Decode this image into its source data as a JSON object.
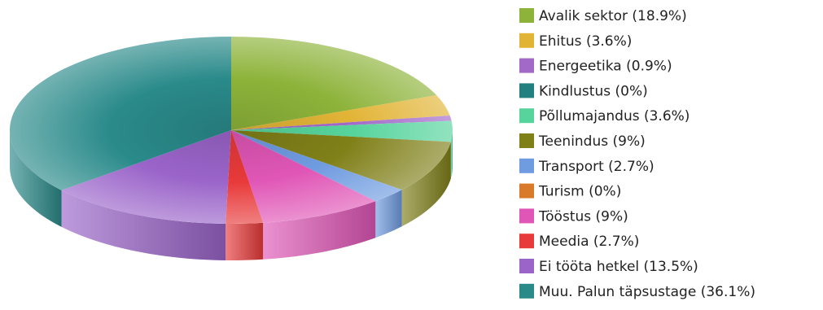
{
  "chart_data": {
    "type": "pie",
    "style": "3d",
    "legend_position": "right",
    "slices": [
      {
        "label": "Avalik sektor (18.9%)",
        "value": 18.9,
        "color": "#8db33a"
      },
      {
        "label": "Ehitus (3.6%)",
        "value": 3.6,
        "color": "#e2b436"
      },
      {
        "label": "Energeetika (0.9%)",
        "value": 0.9,
        "color": "#a269c9"
      },
      {
        "label": "Kindlustus (0%)",
        "value": 0,
        "color": "#238080"
      },
      {
        "label": "Põllumajandus (3.6%)",
        "value": 3.6,
        "color": "#56d49c"
      },
      {
        "label": "Teenindus (9%)",
        "value": 9,
        "color": "#808019"
      },
      {
        "label": "Transport (2.7%)",
        "value": 2.7,
        "color": "#6f9be0"
      },
      {
        "label": "Turism (0%)",
        "value": 0,
        "color": "#d97a2a"
      },
      {
        "label": "Tööstus (9%)",
        "value": 9,
        "color": "#e056b6"
      },
      {
        "label": "Meedia (2.7%)",
        "value": 2.7,
        "color": "#e83a3a"
      },
      {
        "label": "Ei tööta hetkel (13.5%)",
        "value": 13.5,
        "color": "#9a64c9"
      },
      {
        "label": "Muu. Palun täpsustage (36.1%)",
        "value": 36.1,
        "color": "#2a8a8a"
      }
    ]
  }
}
